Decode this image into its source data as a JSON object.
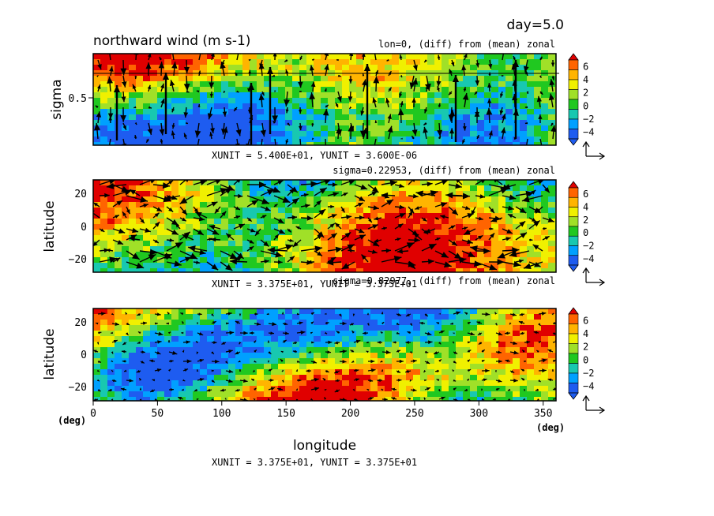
{
  "chart_data": [
    {
      "type": "heatmap",
      "title": "northward wind (m s-1)",
      "day_label": "day=5.0",
      "subtitle": "lon=0, (diff) from (mean) zonal",
      "ylabel": "sigma",
      "yticks": [
        "0.5"
      ],
      "vector_unit": "XUNIT = 5.400E+01, YUNIT = 3.600E-06",
      "colorbar_ticks": [
        "6",
        "4",
        "2",
        "0",
        "−2",
        "−4"
      ]
    },
    {
      "type": "heatmap",
      "subtitle": "sigma=0.22953, (diff) from (mean) zonal",
      "ylabel": "latitude",
      "yticks": [
        "20",
        "0",
        "−20"
      ],
      "vector_unit": "XUNIT = 3.375E+01, YUNIT = 3.375E+01",
      "colorbar_ticks": [
        "6",
        "4",
        "2",
        "0",
        "−2",
        "−4"
      ]
    },
    {
      "type": "heatmap",
      "subtitle": "sigma=0.82977, (diff) from (mean) zonal",
      "ylabel": "latitude",
      "xlabel": "longitude",
      "yticks": [
        "20",
        "0",
        "−20"
      ],
      "xticks": [
        "0",
        "50",
        "100",
        "150",
        "200",
        "250",
        "300",
        "350"
      ],
      "x_unit": "(deg)",
      "y_unit": "(deg)",
      "vector_unit": "XUNIT = 3.375E+01, YUNIT = 3.375E+01",
      "colorbar_ticks": [
        "6",
        "4",
        "2",
        "0",
        "−2",
        "−4"
      ]
    }
  ],
  "colors": {
    "levels": [
      "#6a2acb",
      "#1e5cf0",
      "#00a0ff",
      "#18c8b0",
      "#20c820",
      "#a0e028",
      "#f0f000",
      "#ffb400",
      "#ff6400",
      "#e00000"
    ]
  }
}
